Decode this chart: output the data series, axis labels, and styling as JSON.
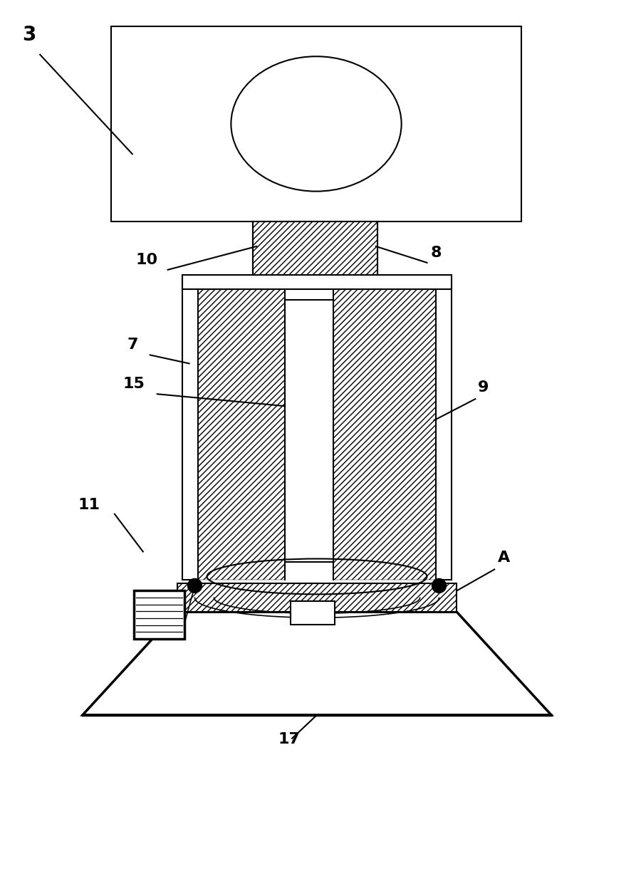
{
  "bg_color": "#ffffff",
  "line_color": "#000000",
  "fig_width": 8.93,
  "fig_height": 12.51,
  "lw_main": 1.5,
  "lw_thick": 2.5,
  "lw_thin": 0.8,
  "font_size": 16
}
